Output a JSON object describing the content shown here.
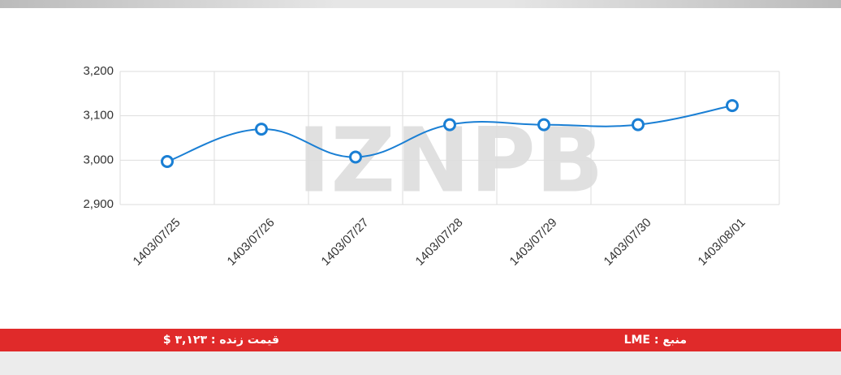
{
  "chart_data": {
    "type": "line",
    "watermark": "IZNPB",
    "categories": [
      "1403/07/25",
      "1403/07/26",
      "1403/07/27",
      "1403/07/28",
      "1403/07/29",
      "1403/07/30",
      "1403/08/01"
    ],
    "values": [
      2997,
      3070,
      3007,
      3080,
      3080,
      3080,
      3123
    ],
    "color": "#1a7fd4",
    "ylim": [
      2900,
      3200
    ],
    "yticks": [
      {
        "value": 2900,
        "label": "2,900"
      },
      {
        "value": 3000,
        "label": "3,000"
      },
      {
        "value": 3100,
        "label": "3,100"
      },
      {
        "value": 3200,
        "label": "3,200"
      }
    ],
    "grid": true
  },
  "footer": {
    "source": "منبع : LME",
    "live_price": "قیمت زنده : ۳,۱۲۳ $"
  }
}
